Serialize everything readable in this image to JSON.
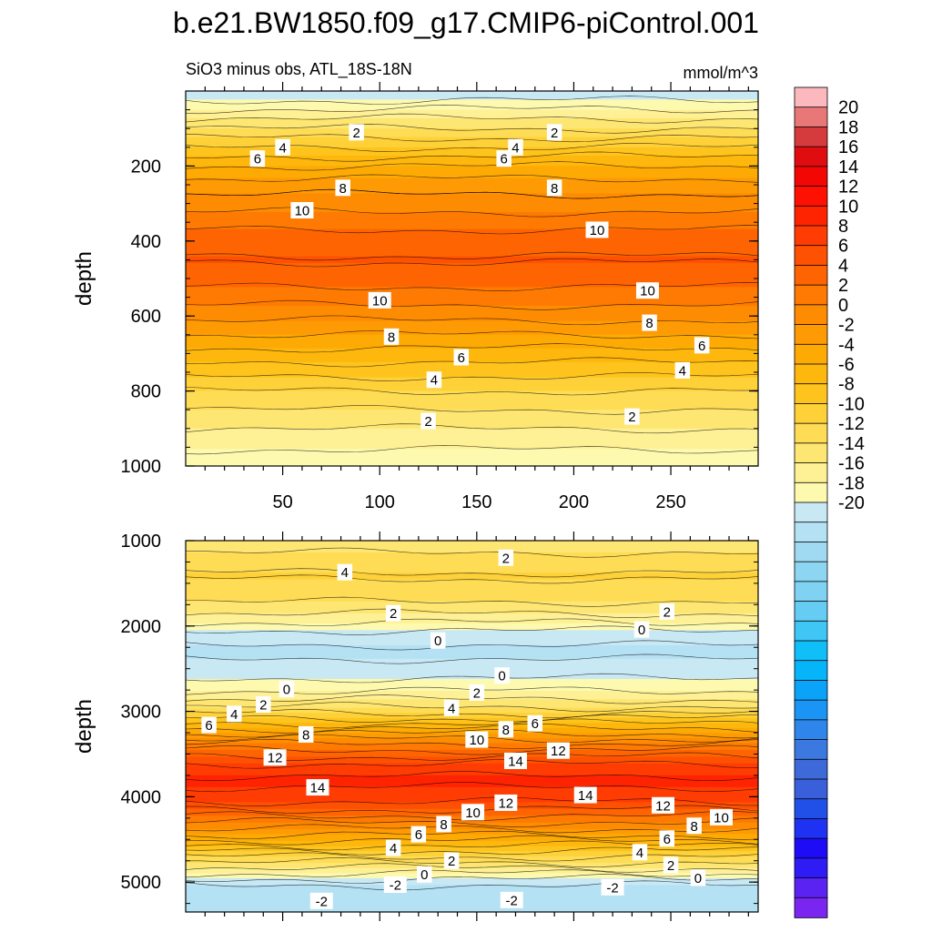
{
  "chart_data": {
    "type": "contour",
    "title": "b.e21.BW1850.f09_g17.CMIP6-piControl.001",
    "subtitle_left": "SiO3 minus obs, ATL_18S-18N",
    "subtitle_right": "mmol/m^3",
    "xlim": [
      0,
      295
    ],
    "x_ticks": [
      50,
      100,
      150,
      200,
      250
    ],
    "x_tick_labels": [
      "50",
      "100",
      "150",
      "200",
      "250"
    ],
    "colorbar": {
      "levels": [
        -21,
        -20,
        -19,
        -18,
        -17,
        -16,
        -15,
        -14,
        -13,
        -12,
        -11,
        -10,
        -9,
        -8,
        -7,
        -6,
        -5,
        -4,
        -3,
        -2,
        -1,
        0,
        1,
        2,
        3,
        4,
        5,
        6,
        7,
        8,
        9,
        10,
        11,
        12,
        13,
        14,
        15,
        16,
        17,
        18,
        19,
        20,
        21
      ],
      "tick_labels": [
        "20",
        "18",
        "16",
        "14",
        "12",
        "10",
        "8",
        "6",
        "4",
        "2",
        "0",
        "-2",
        "-4",
        "-6",
        "-8",
        "-10",
        "-12",
        "-14",
        "-16",
        "-18",
        "-20"
      ],
      "colors_low_to_high": [
        "#7B25F0",
        "#5A23F2",
        "#2E1BF5",
        "#1F0CF7",
        "#1F32F4",
        "#2050E8",
        "#3A5FDA",
        "#3D6AD8",
        "#3B78E0",
        "#2F86EA",
        "#1A95F5",
        "#0AA3F8",
        "#06B5F9",
        "#10BEF8",
        "#3FC6F5",
        "#66CCF3",
        "#7FD2F1",
        "#8DD6F1",
        "#A0DAF2",
        "#B4E1F3",
        "#C8E8F4",
        "#FDFAB0",
        "#FEF094",
        "#FDE672",
        "#FEDC55",
        "#FED139",
        "#FEC41D",
        "#FEB70C",
        "#FDAA05",
        "#FE9B04",
        "#FE8C03",
        "#FE7A02",
        "#FE6502",
        "#FE5102",
        "#FF3C03",
        "#FE2402",
        "#FE1103",
        "#F20705",
        "#E00D10",
        "#D53A3D",
        "#E87878",
        "#FBB8BD"
      ]
    },
    "panels": [
      {
        "ylabel": "depth",
        "ylim": [
          0,
          1000
        ],
        "y_ticks": [
          200,
          400,
          600,
          800,
          1000
        ],
        "y_tick_labels": [
          "200",
          "400",
          "600",
          "800",
          "1000"
        ],
        "profile": [
          [
            0,
            -0.3
          ],
          [
            25,
            0
          ],
          [
            60,
            1.5
          ],
          [
            100,
            3
          ],
          [
            150,
            5
          ],
          [
            200,
            7
          ],
          [
            250,
            8.5
          ],
          [
            300,
            9.5
          ],
          [
            350,
            10.6
          ],
          [
            400,
            11.6
          ],
          [
            450,
            12.1
          ],
          [
            500,
            11.4
          ],
          [
            550,
            10.5
          ],
          [
            600,
            9.3
          ],
          [
            650,
            8
          ],
          [
            700,
            6.6
          ],
          [
            750,
            5.3
          ],
          [
            800,
            4
          ],
          [
            850,
            3
          ],
          [
            900,
            2
          ],
          [
            950,
            1.1
          ],
          [
            1000,
            0.3
          ]
        ],
        "contour_labels": [
          {
            "x": 88,
            "y": 110,
            "text": "2"
          },
          {
            "x": 190,
            "y": 110,
            "text": "2"
          },
          {
            "x": 50,
            "y": 150,
            "text": "4"
          },
          {
            "x": 170,
            "y": 150,
            "text": "4"
          },
          {
            "x": 37,
            "y": 180,
            "text": "6"
          },
          {
            "x": 164,
            "y": 180,
            "text": "6"
          },
          {
            "x": 81,
            "y": 258,
            "text": "8"
          },
          {
            "x": 190,
            "y": 258,
            "text": "8"
          },
          {
            "x": 60,
            "y": 318,
            "text": "10"
          },
          {
            "x": 212,
            "y": 370,
            "text": "10"
          },
          {
            "x": 238,
            "y": 532,
            "text": "10"
          },
          {
            "x": 100,
            "y": 558,
            "text": "10"
          },
          {
            "x": 239,
            "y": 618,
            "text": "8"
          },
          {
            "x": 106,
            "y": 655,
            "text": "8"
          },
          {
            "x": 266,
            "y": 678,
            "text": "6"
          },
          {
            "x": 142,
            "y": 710,
            "text": "6"
          },
          {
            "x": 256,
            "y": 745,
            "text": "4"
          },
          {
            "x": 128,
            "y": 770,
            "text": "4"
          },
          {
            "x": 230,
            "y": 868,
            "text": "2"
          },
          {
            "x": 125,
            "y": 880,
            "text": "2"
          }
        ]
      },
      {
        "ylabel": "depth",
        "ylim": [
          1000,
          5350
        ],
        "y_ticks": [
          1000,
          2000,
          3000,
          4000,
          5000
        ],
        "y_tick_labels": [
          "1000",
          "2000",
          "3000",
          "4000",
          "5000"
        ],
        "profile": [
          [
            1000,
            2.3
          ],
          [
            1200,
            3.3
          ],
          [
            1400,
            4.1
          ],
          [
            1600,
            3.7
          ],
          [
            1800,
            2.5
          ],
          [
            1950,
            1.1
          ],
          [
            2100,
            -0.5
          ],
          [
            2300,
            -1.3
          ],
          [
            2500,
            -0.6
          ],
          [
            2650,
            0.2
          ],
          [
            2800,
            1.3
          ],
          [
            3000,
            3.6
          ],
          [
            3200,
            7
          ],
          [
            3400,
            10.3
          ],
          [
            3600,
            12.9
          ],
          [
            3800,
            14.3
          ],
          [
            4000,
            13.6
          ],
          [
            4150,
            12
          ],
          [
            4300,
            10
          ],
          [
            4450,
            8
          ],
          [
            4600,
            5.5
          ],
          [
            4750,
            3.3
          ],
          [
            4900,
            1
          ],
          [
            5000,
            -0.6
          ],
          [
            5100,
            -1.6
          ],
          [
            5200,
            -1.9
          ],
          [
            5350,
            -1.5
          ]
        ],
        "contour_labels": [
          {
            "x": 165,
            "y": 1200,
            "text": "2"
          },
          {
            "x": 82,
            "y": 1370,
            "text": "4"
          },
          {
            "x": 107,
            "y": 1850,
            "text": "2"
          },
          {
            "x": 248,
            "y": 1830,
            "text": "2"
          },
          {
            "x": 235,
            "y": 2040,
            "text": "0"
          },
          {
            "x": 130,
            "y": 2170,
            "text": "0"
          },
          {
            "x": 163,
            "y": 2580,
            "text": "0"
          },
          {
            "x": 52,
            "y": 2740,
            "text": "0"
          },
          {
            "x": 150,
            "y": 2780,
            "text": "2"
          },
          {
            "x": 40,
            "y": 2920,
            "text": "2"
          },
          {
            "x": 137,
            "y": 2960,
            "text": "4"
          },
          {
            "x": 25,
            "y": 3030,
            "text": "4"
          },
          {
            "x": 12,
            "y": 3160,
            "text": "6"
          },
          {
            "x": 180,
            "y": 3140,
            "text": "6"
          },
          {
            "x": 62,
            "y": 3270,
            "text": "8"
          },
          {
            "x": 165,
            "y": 3210,
            "text": "8"
          },
          {
            "x": 150,
            "y": 3330,
            "text": "10"
          },
          {
            "x": 192,
            "y": 3460,
            "text": "12"
          },
          {
            "x": 46,
            "y": 3540,
            "text": "12"
          },
          {
            "x": 170,
            "y": 3580,
            "text": "14"
          },
          {
            "x": 68,
            "y": 3890,
            "text": "14"
          },
          {
            "x": 206,
            "y": 3980,
            "text": "14"
          },
          {
            "x": 165,
            "y": 4070,
            "text": "12"
          },
          {
            "x": 246,
            "y": 4100,
            "text": "12"
          },
          {
            "x": 148,
            "y": 4180,
            "text": "10"
          },
          {
            "x": 276,
            "y": 4240,
            "text": "10"
          },
          {
            "x": 133,
            "y": 4320,
            "text": "8"
          },
          {
            "x": 262,
            "y": 4340,
            "text": "8"
          },
          {
            "x": 120,
            "y": 4440,
            "text": "6"
          },
          {
            "x": 248,
            "y": 4490,
            "text": "6"
          },
          {
            "x": 107,
            "y": 4600,
            "text": "4"
          },
          {
            "x": 234,
            "y": 4650,
            "text": "4"
          },
          {
            "x": 137,
            "y": 4750,
            "text": "2"
          },
          {
            "x": 250,
            "y": 4800,
            "text": "2"
          },
          {
            "x": 123,
            "y": 4910,
            "text": "0"
          },
          {
            "x": 264,
            "y": 4950,
            "text": "0"
          },
          {
            "x": 108,
            "y": 5030,
            "text": "-2"
          },
          {
            "x": 220,
            "y": 5060,
            "text": "-2"
          },
          {
            "x": 70,
            "y": 5220,
            "text": "-2"
          },
          {
            "x": 168,
            "y": 5210,
            "text": "-2"
          }
        ]
      }
    ]
  }
}
